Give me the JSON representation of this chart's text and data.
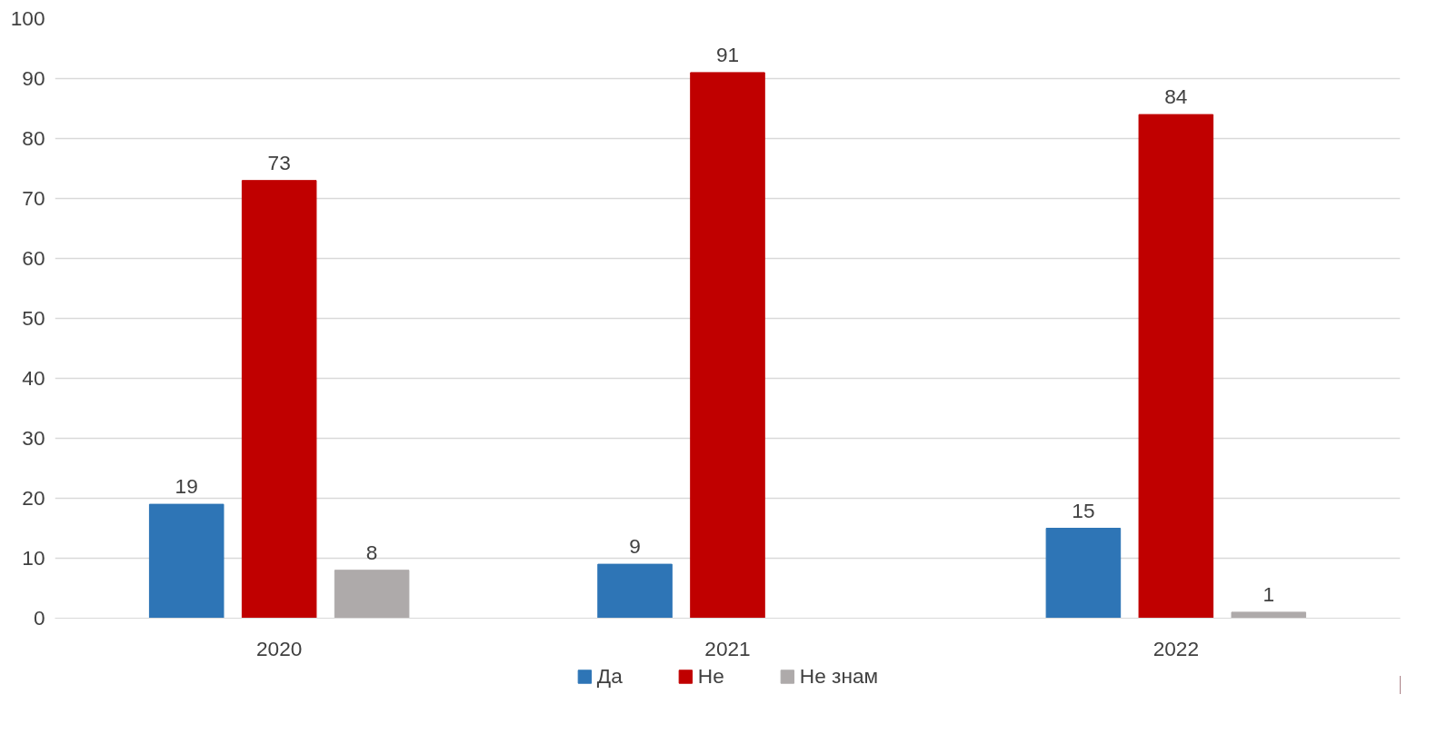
{
  "chart_data": {
    "type": "bar",
    "categories": [
      "2020",
      "2021",
      "2022"
    ],
    "series": [
      {
        "name": "Да",
        "color": "#2e75b6",
        "values": [
          19,
          9,
          15
        ]
      },
      {
        "name": "Не",
        "color": "#c00000",
        "values": [
          73,
          91,
          84
        ]
      },
      {
        "name": "Не знам",
        "color": "#aeaaaa",
        "values": [
          8,
          null,
          1
        ]
      }
    ],
    "ylim": [
      0,
      100
    ],
    "yticks": [
      0,
      10,
      20,
      30,
      40,
      50,
      60,
      70,
      80,
      90,
      100
    ],
    "grid": "y",
    "legend": "bottom",
    "data_labels": true
  }
}
